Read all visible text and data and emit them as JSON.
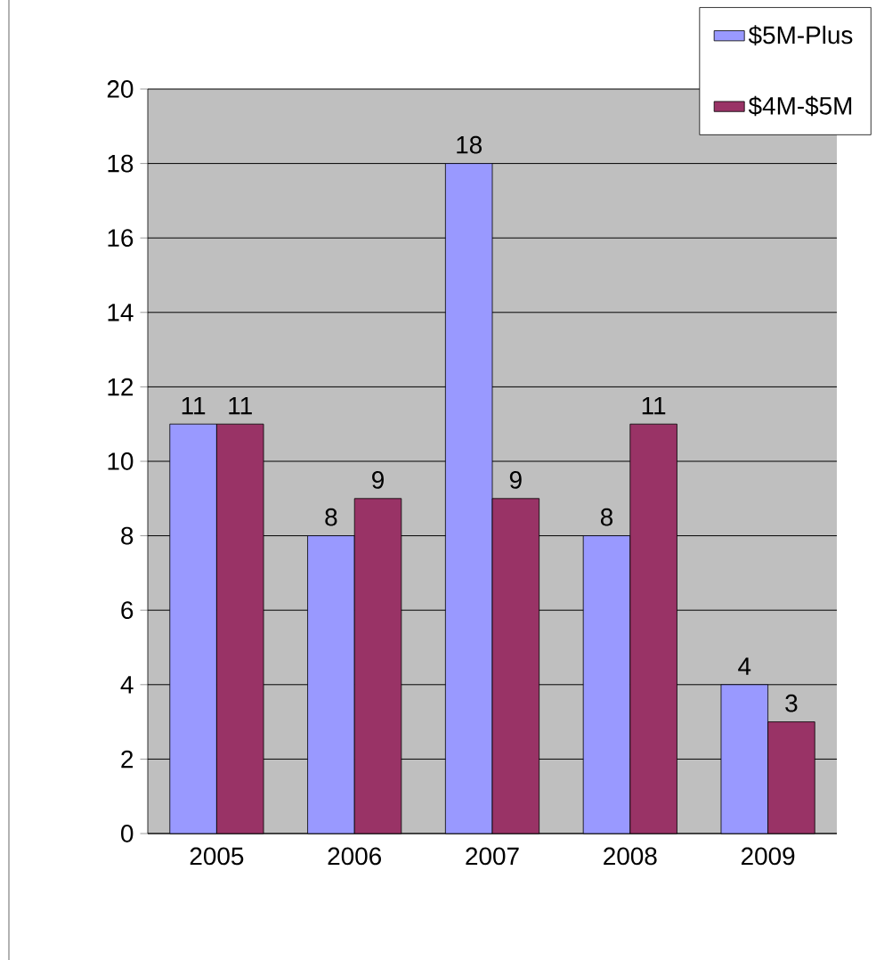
{
  "chart_data": {
    "type": "bar",
    "categories": [
      "2005",
      "2006",
      "2007",
      "2008",
      "2009"
    ],
    "series": [
      {
        "name": "$5M-Plus",
        "color": "#9999ff",
        "values": [
          11,
          8,
          18,
          8,
          4
        ]
      },
      {
        "name": "$4M-$5M",
        "color": "#993366",
        "values": [
          11,
          9,
          9,
          11,
          3
        ]
      }
    ],
    "ylim": [
      0,
      20
    ],
    "yticks": [
      0,
      2,
      4,
      6,
      8,
      10,
      12,
      14,
      16,
      18,
      20
    ],
    "grid": "y",
    "legend": "top right",
    "data_labels": true
  }
}
